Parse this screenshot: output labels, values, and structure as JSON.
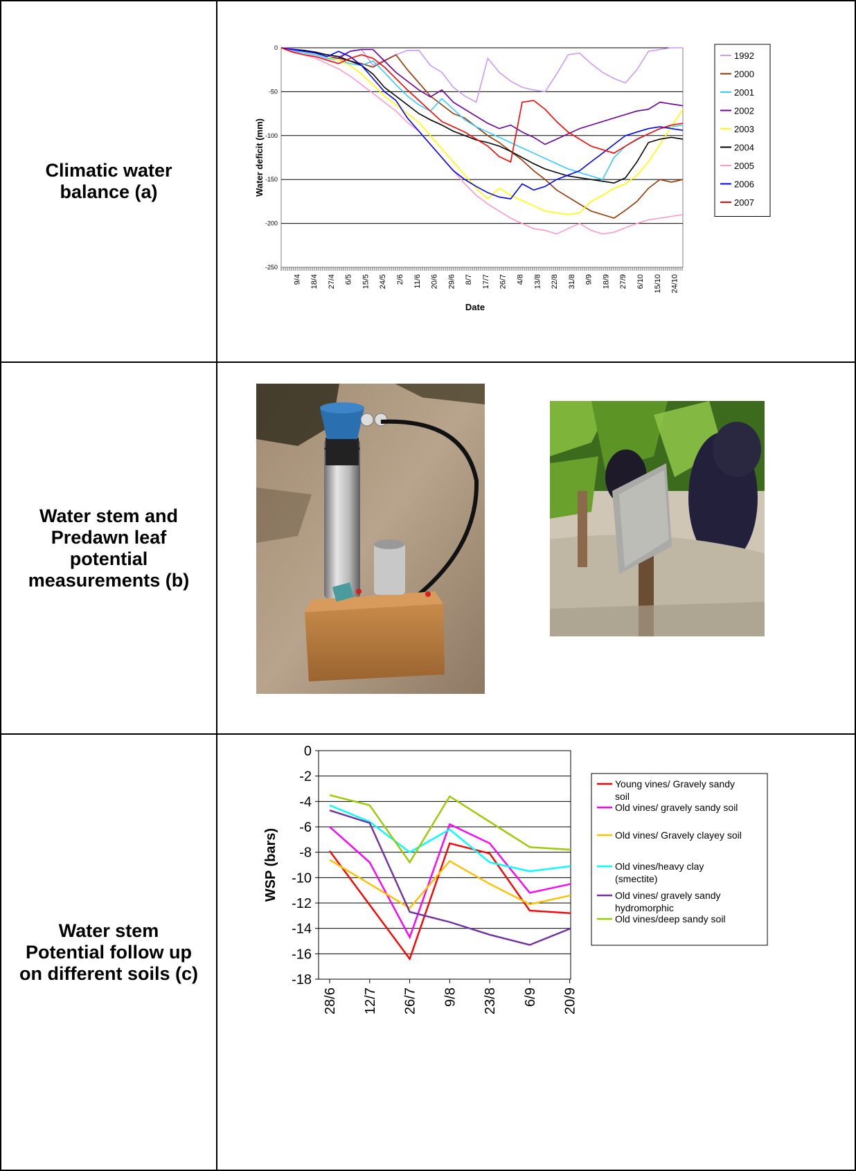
{
  "rows": [
    {
      "label": "Climatic water balance (a)"
    },
    {
      "label": "Water stem and Predawn leaf potential measurements (b)"
    },
    {
      "label": "Water stem Potential follow up on different soils (c)"
    }
  ],
  "chart_data": [
    {
      "type": "line",
      "title": "",
      "xlabel": "Date",
      "ylabel": "Water deficit (mm)",
      "ylim": [
        -250,
        0
      ],
      "yticks": [
        0,
        -50,
        -100,
        -150,
        -200,
        -250
      ],
      "grid": true,
      "legend": "right",
      "x_tick_labels": [
        "9/4",
        "18/4",
        "27/4",
        "6/5",
        "15/5",
        "24/5",
        "2/6",
        "11/6",
        "20/6",
        "29/6",
        "8/7",
        "17/7",
        "26/7",
        "4/8",
        "13/8",
        "22/8",
        "31/8",
        "9/9",
        "18/9",
        "27/9",
        "6/10",
        "15/10",
        "24/10"
      ],
      "series": [
        {
          "name": "1992",
          "color": "#cc99ff",
          "values": [
            0,
            -1,
            -3,
            -6,
            -8,
            -10,
            -4,
            -2,
            -20,
            -14,
            -8,
            -3,
            -3,
            -20,
            -28,
            -45,
            -55,
            -62,
            -12,
            -28,
            -38,
            -45,
            -48,
            -50,
            -30,
            -8,
            -6,
            -18,
            -28,
            -35,
            -40,
            -25,
            -4,
            -2,
            0,
            0
          ]
        },
        {
          "name": "2000",
          "color": "#993300",
          "values": [
            0,
            -2,
            -4,
            -6,
            -10,
            -12,
            -15,
            -18,
            -22,
            -15,
            -8,
            -25,
            -40,
            -55,
            -65,
            -75,
            -80,
            -90,
            -100,
            -108,
            -118,
            -128,
            -140,
            -150,
            -162,
            -170,
            -178,
            -186,
            -190,
            -194,
            -185,
            -175,
            -160,
            -150,
            -153,
            -150
          ]
        },
        {
          "name": "2001",
          "color": "#33ccff",
          "values": [
            0,
            -3,
            -6,
            -8,
            -12,
            -14,
            -18,
            -20,
            -15,
            -28,
            -42,
            -55,
            -65,
            -72,
            -58,
            -70,
            -82,
            -90,
            -96,
            -102,
            -108,
            -114,
            -120,
            -126,
            -132,
            -138,
            -142,
            -146,
            -150,
            -125,
            -112,
            -105,
            -98,
            -92,
            -90,
            -88
          ]
        },
        {
          "name": "2002",
          "color": "#660099",
          "values": [
            0,
            -2,
            -4,
            -6,
            -10,
            -12,
            -4,
            -2,
            -2,
            -15,
            -28,
            -38,
            -48,
            -56,
            -48,
            -62,
            -70,
            -78,
            -86,
            -92,
            -88,
            -96,
            -102,
            -110,
            -104,
            -98,
            -92,
            -88,
            -84,
            -80,
            -76,
            -72,
            -70,
            -62,
            -64,
            -66
          ]
        },
        {
          "name": "2003",
          "color": "#ffff00",
          "values": [
            0,
            -2,
            -4,
            -6,
            -10,
            -14,
            -20,
            -30,
            -42,
            -55,
            -65,
            -75,
            -85,
            -100,
            -115,
            -130,
            -145,
            -160,
            -172,
            -160,
            -168,
            -174,
            -180,
            -186,
            -188,
            -190,
            -188,
            -175,
            -168,
            -160,
            -155,
            -145,
            -130,
            -110,
            -90,
            -70
          ]
        },
        {
          "name": "2004",
          "color": "#000000",
          "values": [
            0,
            -2,
            -3,
            -5,
            -8,
            -10,
            -15,
            -20,
            -30,
            -45,
            -55,
            -65,
            -75,
            -82,
            -88,
            -95,
            -100,
            -105,
            -108,
            -112,
            -118,
            -125,
            -132,
            -138,
            -142,
            -146,
            -148,
            -150,
            -152,
            -154,
            -148,
            -130,
            -108,
            -104,
            -102,
            -104
          ]
        },
        {
          "name": "2005",
          "color": "#ff99cc",
          "values": [
            0,
            -4,
            -8,
            -12,
            -18,
            -24,
            -32,
            -42,
            -52,
            -62,
            -72,
            -85,
            -95,
            -110,
            -125,
            -140,
            -155,
            -168,
            -178,
            -186,
            -194,
            -200,
            -206,
            -208,
            -212,
            -206,
            -200,
            -208,
            -212,
            -210,
            -205,
            -200,
            -196,
            -194,
            -192,
            -190
          ]
        },
        {
          "name": "2006",
          "color": "#0000ff",
          "values": [
            0,
            -2,
            -4,
            -6,
            -10,
            -4,
            -10,
            -20,
            -35,
            -50,
            -60,
            -80,
            -95,
            -110,
            -125,
            -140,
            -150,
            -158,
            -165,
            -170,
            -172,
            -155,
            -162,
            -158,
            -150,
            -145,
            -140,
            -130,
            -120,
            -110,
            -100,
            -96,
            -92,
            -90,
            -92,
            -94
          ]
        },
        {
          "name": "2007",
          "color": "#ff0000",
          "values": [
            0,
            -5,
            -8,
            -10,
            -14,
            -18,
            -12,
            -8,
            -12,
            -22,
            -35,
            -48,
            -60,
            -72,
            -84,
            -90,
            -96,
            -104,
            -112,
            -124,
            -130,
            -62,
            -60,
            -70,
            -84,
            -96,
            -104,
            -112,
            -116,
            -120,
            -112,
            -104,
            -98,
            -92,
            -88,
            -86
          ]
        }
      ]
    },
    {
      "type": "line",
      "title": "",
      "xlabel": "",
      "ylabel": "WSP (bars)",
      "ylim": [
        -18,
        0
      ],
      "yticks": [
        0,
        -2,
        -4,
        -6,
        -8,
        -10,
        -12,
        -14,
        -16,
        -18
      ],
      "grid": true,
      "legend": "right",
      "categories": [
        "28/6",
        "12/7",
        "26/7",
        "9/8",
        "23/8",
        "6/9",
        "20/9"
      ],
      "x_positions": [
        0,
        1,
        2,
        3,
        4,
        5,
        6
      ],
      "series": [
        {
          "name": "Young vines/ Gravely sandy soil",
          "color": "#ff0000",
          "x": [
            0,
            2,
            3,
            4,
            5,
            6.2
          ],
          "values": [
            -7.9,
            -16.4,
            -7.3,
            -8.1,
            -12.6,
            -12.8
          ]
        },
        {
          "name": "Old vines/ gravely sandy soil",
          "color": "#ff00ff",
          "x": [
            0,
            1,
            2,
            3,
            4,
            5,
            6.2
          ],
          "values": [
            -6.0,
            -8.8,
            -14.7,
            -5.8,
            -7.3,
            -11.2,
            -10.5
          ]
        },
        {
          "name": "Old vines/ Gravely clayey soil",
          "color": "#ffc000",
          "x": [
            0,
            2,
            3,
            4,
            5,
            6.2
          ],
          "values": [
            -8.6,
            -12.4,
            -8.7,
            -10.5,
            -12.1,
            -11.4
          ]
        },
        {
          "name": "Old vines/heavy clay (smectite)",
          "color": "#00ffff",
          "x": [
            0,
            1,
            2,
            3,
            4,
            5,
            6.2
          ],
          "values": [
            -4.3,
            -5.6,
            -8.0,
            -6.2,
            -8.8,
            -9.5,
            -9.1
          ]
        },
        {
          "name": "Old vines/ gravely sandy hydromorphic",
          "color": "#7030a0",
          "x": [
            0,
            1,
            2,
            3,
            4,
            5,
            6.2
          ],
          "values": [
            -4.7,
            -5.7,
            -12.7,
            -13.5,
            -14.5,
            -15.3,
            -14.0
          ]
        },
        {
          "name": "Old vines/deep sandy soil",
          "color": "#99cc00",
          "x": [
            0,
            1,
            2,
            3,
            4,
            5,
            6.2
          ],
          "values": [
            -3.5,
            -4.3,
            -8.8,
            -3.6,
            -5.6,
            -7.6,
            -7.8
          ]
        }
      ]
    }
  ]
}
